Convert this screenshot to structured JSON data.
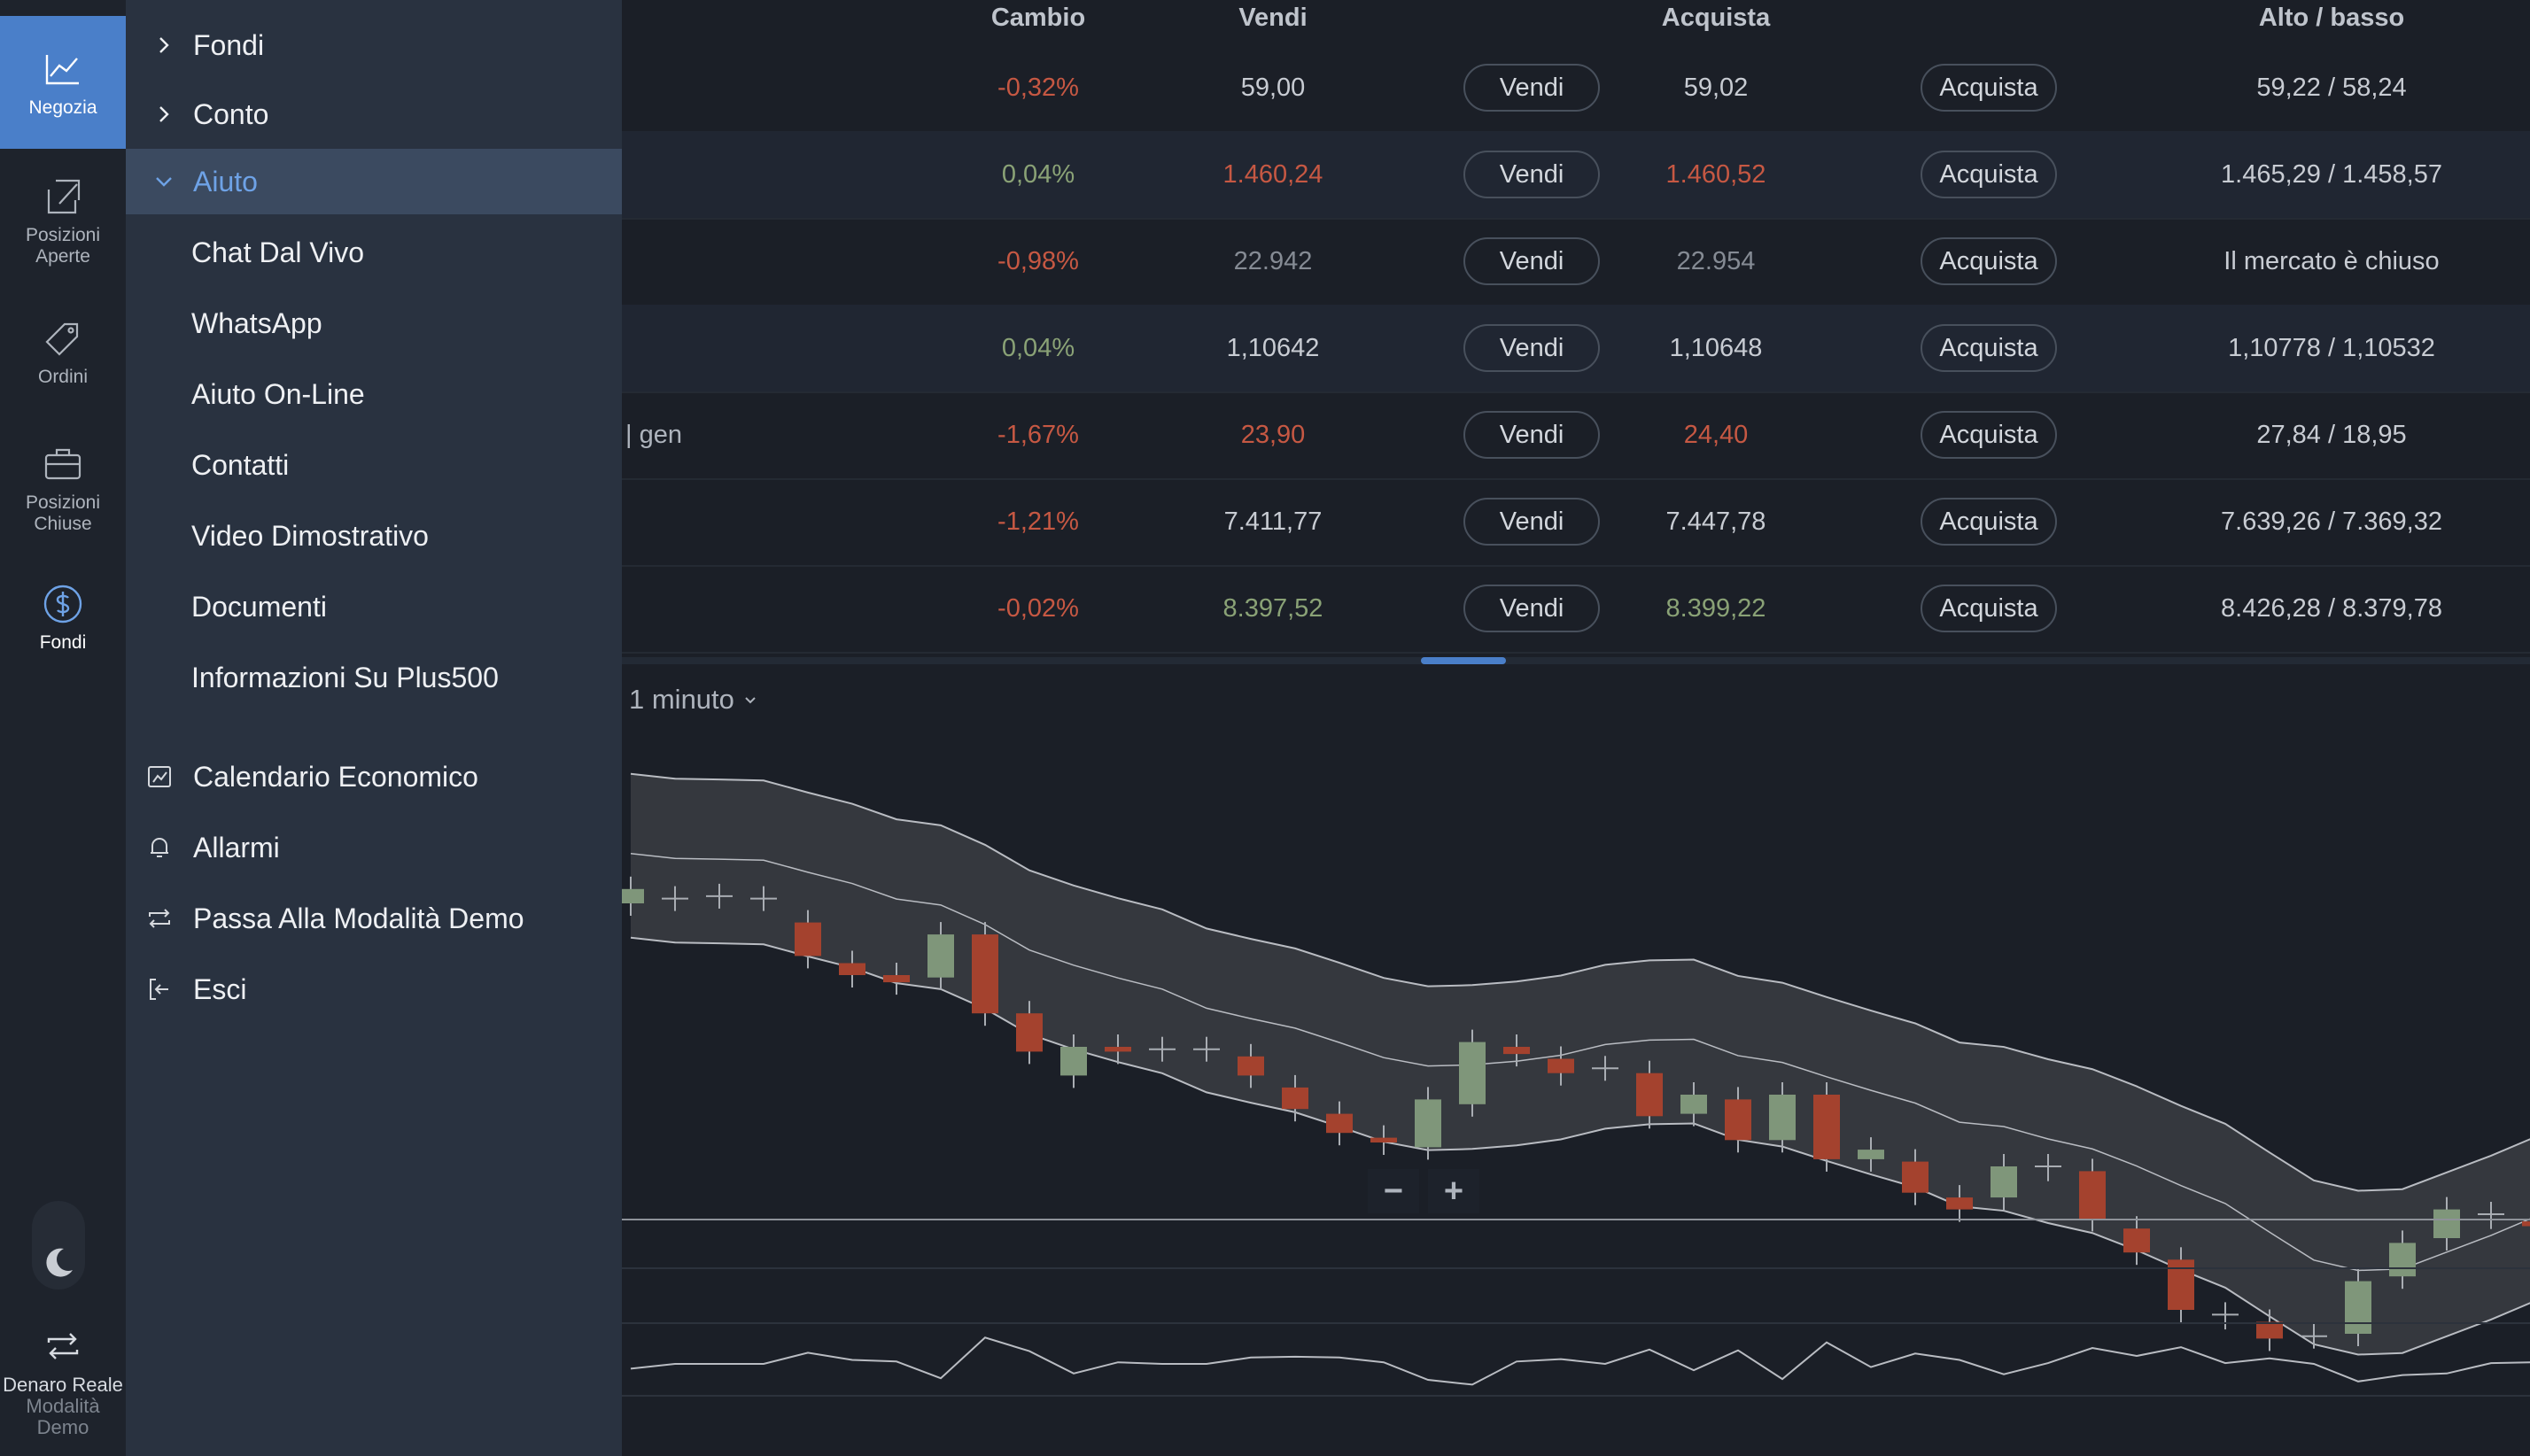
{
  "rail": {
    "trade": "Negozia",
    "open_positions": [
      "Posizioni",
      "Aperte"
    ],
    "orders": "Ordini",
    "closed_positions": [
      "Posizioni",
      "Chiuse"
    ],
    "funds": "Fondi",
    "mode": [
      "Denaro Reale",
      "Modalità",
      "Demo"
    ]
  },
  "menu": {
    "sections": [
      {
        "label": "Fondi",
        "expanded": false
      },
      {
        "label": "Conto",
        "expanded": false
      },
      {
        "label": "Aiuto",
        "expanded": true
      }
    ],
    "help_items": [
      "Chat Dal Vivo",
      "WhatsApp",
      "Aiuto On-Line",
      "Contatti",
      "Video Dimostrativo",
      "Documenti",
      "Informazioni Su Plus500"
    ],
    "utilities": [
      {
        "label": "Calendario Economico",
        "icon": "calendar-chart-icon"
      },
      {
        "label": "Allarmi",
        "icon": "bell-icon"
      },
      {
        "label": "Passa Alla Modalità Demo",
        "icon": "switch-icon"
      },
      {
        "label": "Esci",
        "icon": "logout-icon"
      }
    ]
  },
  "table": {
    "headers": {
      "change": "Cambio",
      "sell": "Vendi",
      "buy": "Acquista",
      "high_low": "Alto / basso"
    },
    "sell_button": "Vendi",
    "buy_button": "Acquista",
    "partial_name": "| gen",
    "rows": [
      {
        "change": "-0,32%",
        "sell": "59,00",
        "buy": "59,02",
        "high_low": "59,22 / 58,24",
        "change_dir": "neg",
        "price_dir": "neu"
      },
      {
        "change": "0,04%",
        "sell": "1.460,24",
        "buy": "1.460,52",
        "high_low": "1.465,29 / 1.458,57",
        "change_dir": "pos",
        "price_dir": "dn"
      },
      {
        "change": "-0,98%",
        "sell": "22.942",
        "buy": "22.954",
        "high_low": "Il mercato è chiuso",
        "change_dir": "neg",
        "price_dir": "dim"
      },
      {
        "change": "0,04%",
        "sell": "1,10642",
        "buy": "1,10648",
        "high_low": "1,10778 / 1,10532",
        "change_dir": "pos",
        "price_dir": "neu"
      },
      {
        "change": "-1,67%",
        "sell": "23,90",
        "buy": "24,40",
        "high_low": "27,84 / 18,95",
        "change_dir": "neg",
        "price_dir": "dn"
      },
      {
        "change": "-1,21%",
        "sell": "7.411,77",
        "buy": "7.447,78",
        "high_low": "7.639,26 / 7.369,32",
        "change_dir": "neg",
        "price_dir": "neu"
      },
      {
        "change": "-0,02%",
        "sell": "8.397,52",
        "buy": "8.399,22",
        "high_low": "8.426,28 / 8.379,78",
        "change_dir": "neg",
        "price_dir": "up"
      }
    ]
  },
  "chart": {
    "timeframe": "1 minuto",
    "zoom_out": "−",
    "zoom_in": "+",
    "colors": {
      "up": "#7f967a",
      "down": "#a4422e",
      "band": "#3a3d43",
      "line": "#b9bcc2"
    }
  },
  "chart_data": {
    "type": "candlestick",
    "indicators": [
      "bollinger-bands",
      "oscillator"
    ],
    "candles": [
      {
        "o": 0.0,
        "c": 0.6
      },
      {
        "o": 0.2,
        "c": 0.2
      },
      {
        "o": 0.3,
        "c": 0.3
      },
      {
        "o": 0.2,
        "c": 0.2
      },
      {
        "o": -0.8,
        "c": -2.2
      },
      {
        "o": -2.5,
        "c": -3.0
      },
      {
        "o": -3.0,
        "c": -3.3
      },
      {
        "o": -3.1,
        "c": -1.3
      },
      {
        "o": -1.3,
        "c": -4.6
      },
      {
        "o": -4.6,
        "c": -6.2
      },
      {
        "o": -7.2,
        "c": -6.0
      },
      {
        "o": -6.0,
        "c": -6.2
      },
      {
        "o": -6.1,
        "c": -6.1
      },
      {
        "o": -6.1,
        "c": -6.1
      },
      {
        "o": -6.4,
        "c": -7.2
      },
      {
        "o": -7.7,
        "c": -8.6
      },
      {
        "o": -8.8,
        "c": -9.6
      },
      {
        "o": -9.8,
        "c": -10.0
      },
      {
        "o": -10.2,
        "c": -8.2
      },
      {
        "o": -8.4,
        "c": -5.8
      },
      {
        "o": -6.0,
        "c": -6.3
      },
      {
        "o": -6.5,
        "c": -7.1
      },
      {
        "o": -6.9,
        "c": -6.9
      },
      {
        "o": -7.1,
        "c": -8.9
      },
      {
        "o": -8.8,
        "c": -8.0
      },
      {
        "o": -8.2,
        "c": -9.9
      },
      {
        "o": -9.9,
        "c": -8.0
      },
      {
        "o": -8.0,
        "c": -10.7
      },
      {
        "o": -10.7,
        "c": -10.3
      },
      {
        "o": -10.8,
        "c": -12.1
      },
      {
        "o": -12.3,
        "c": -12.8
      },
      {
        "o": -12.3,
        "c": -11.0
      },
      {
        "o": -11.0,
        "c": -11.1
      },
      {
        "o": -11.2,
        "c": -13.2
      },
      {
        "o": -13.6,
        "c": -14.6
      },
      {
        "o": -14.9,
        "c": -17.0
      },
      {
        "o": -17.2,
        "c": -17.3
      },
      {
        "o": -17.5,
        "c": -18.2
      },
      {
        "o": -18.1,
        "c": -18.1
      },
      {
        "o": -18.0,
        "c": -15.8
      },
      {
        "o": -15.6,
        "c": -14.2
      },
      {
        "o": -14.0,
        "c": -12.8
      },
      {
        "o": -13.0,
        "c": -13.1
      },
      {
        "o": -13.3,
        "c": -13.5
      }
    ]
  }
}
